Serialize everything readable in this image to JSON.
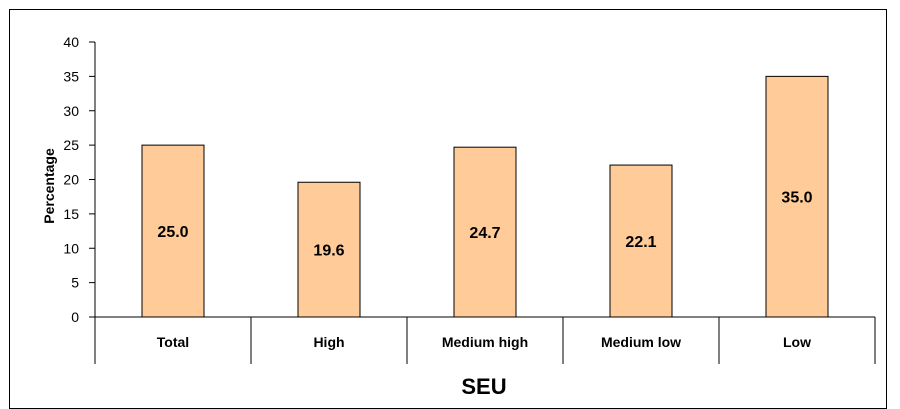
{
  "chart_data": {
    "type": "bar",
    "categories": [
      "Total",
      "High",
      "Medium high",
      "Medium low",
      "Low"
    ],
    "values": [
      25.0,
      19.6,
      24.7,
      22.1,
      35.0
    ],
    "data_labels": [
      "25.0",
      "19.6",
      "24.7",
      "22.1",
      "35.0"
    ],
    "y_ticks": [
      "0",
      "5",
      "10",
      "15",
      "20",
      "25",
      "30",
      "35",
      "40"
    ],
    "ylim": [
      0,
      40
    ],
    "ylabel": "Percentage",
    "xlabel": "SEU",
    "grid": false,
    "legend": "none",
    "colors": {
      "bar_fill": "#ffcc99",
      "bar_stroke": "#000000",
      "axis": "#000000"
    }
  }
}
